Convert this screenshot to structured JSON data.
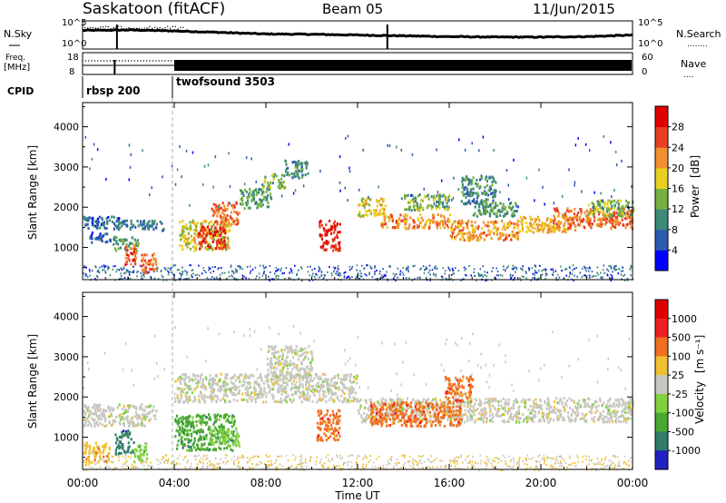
{
  "header": {
    "station": "Saskatoon (fitACF)",
    "beam": "Beam 05",
    "date": "11/Jun/2015"
  },
  "side_labels": {
    "nsky": "N.Sky",
    "nsearch": "N.Search",
    "freq": "Freq.",
    "freq_unit": "[MHz]",
    "nave": "Nave",
    "cpid": "CPID",
    "nsearch_dots": "........",
    "nave_dots": "...."
  },
  "chart_data": [
    {
      "type": "line",
      "name": "noise",
      "y_left_ticks": [
        "10^5",
        "10^0"
      ],
      "y_right_ticks": [
        "10^5",
        "10^0"
      ],
      "series": [
        {
          "name": "N.Sky",
          "x_hours": [
            0,
            2,
            4,
            6,
            8,
            10,
            12,
            14,
            16,
            18,
            20,
            22,
            24
          ],
          "level": [
            0.85,
            0.88,
            0.82,
            0.72,
            0.62,
            0.6,
            0.55,
            0.5,
            0.45,
            0.42,
            0.42,
            0.45,
            0.55
          ]
        },
        {
          "name": "N.Search",
          "x_hours": [
            0,
            1.3,
            2,
            4
          ],
          "level": [
            0.95,
            0.92,
            0.93,
            0.9
          ]
        }
      ]
    },
    {
      "type": "line",
      "name": "freq_nave",
      "y_left_ticks": [
        "18",
        "8"
      ],
      "y_right_ticks": [
        "60",
        "0"
      ],
      "nave_fraction_start": 0.4,
      "nave_fraction_main": 0.6
    },
    {
      "type": "table",
      "name": "cpid",
      "segments": [
        {
          "start_hour": 0,
          "label": "rbsp 200"
        },
        {
          "start_hour": 4,
          "label": "twofsound 3503"
        }
      ]
    },
    {
      "type": "heatmap",
      "name": "power",
      "parameter": "Power",
      "unit": "[dB]",
      "ylabel": "Slant Range [km]",
      "ylim": [
        200,
        4600
      ],
      "y_ticks": [
        1000,
        2000,
        3000,
        4000
      ],
      "xlim": [
        0,
        24
      ],
      "colorbar_range": [
        0,
        32
      ],
      "colorbar_ticks": [
        4,
        8,
        12,
        16,
        20,
        24,
        28
      ],
      "colors": [
        "#0000ff",
        "#2e5bb0",
        "#3c8a78",
        "#76b040",
        "#e8d020",
        "#f09030",
        "#e84020",
        "#e00000"
      ],
      "bands": [
        {
          "t": [
            0,
            1.6
          ],
          "r": [
            1480,
            1800
          ],
          "v": 6
        },
        {
          "t": [
            1.5,
            3.5
          ],
          "r": [
            1450,
            1700
          ],
          "v": 8
        },
        {
          "t": [
            0.3,
            1.2
          ],
          "r": [
            1150,
            1400
          ],
          "v": 6
        },
        {
          "t": [
            1.3,
            2.4
          ],
          "r": [
            950,
            1300
          ],
          "v": 12
        },
        {
          "t": [
            1.8,
            2.3
          ],
          "r": [
            600,
            1100
          ],
          "v": 26
        },
        {
          "t": [
            2.5,
            3.2
          ],
          "r": [
            400,
            900
          ],
          "v": 24
        },
        {
          "t": [
            4.2,
            6.4
          ],
          "r": [
            950,
            1700
          ],
          "v": 18
        },
        {
          "t": [
            5.0,
            6.2
          ],
          "r": [
            1000,
            1550
          ],
          "v": 28
        },
        {
          "t": [
            5.6,
            6.8
          ],
          "r": [
            1600,
            2150
          ],
          "v": 24
        },
        {
          "t": [
            6.8,
            8.2
          ],
          "r": [
            2000,
            2500
          ],
          "v": 12
        },
        {
          "t": [
            7.8,
            8.8
          ],
          "r": [
            2500,
            2850
          ],
          "v": 14
        },
        {
          "t": [
            8.8,
            9.8
          ],
          "r": [
            2750,
            3200
          ],
          "v": 10
        },
        {
          "t": [
            10.3,
            11.2
          ],
          "r": [
            950,
            1700
          ],
          "v": 28
        },
        {
          "t": [
            12.0,
            13.2
          ],
          "r": [
            1800,
            2250
          ],
          "v": 18
        },
        {
          "t": [
            13.0,
            16.0
          ],
          "r": [
            1500,
            1850
          ],
          "v": 22
        },
        {
          "t": [
            14.0,
            16.0
          ],
          "r": [
            1950,
            2350
          ],
          "v": 14
        },
        {
          "t": [
            16.0,
            19.0
          ],
          "r": [
            1200,
            1700
          ],
          "v": 22
        },
        {
          "t": [
            17.0,
            19.0
          ],
          "r": [
            1800,
            2150
          ],
          "v": 12
        },
        {
          "t": [
            19.0,
            21.5
          ],
          "r": [
            1400,
            1800
          ],
          "v": 20
        },
        {
          "t": [
            20.5,
            24.0
          ],
          "r": [
            1500,
            2000
          ],
          "v": 24
        },
        {
          "t": [
            22.0,
            24.0
          ],
          "r": [
            1800,
            2200
          ],
          "v": 14
        },
        {
          "t": [
            16.5,
            18.0
          ],
          "r": [
            2100,
            2800
          ],
          "v": 10
        }
      ]
    },
    {
      "type": "heatmap",
      "name": "velocity",
      "parameter": "Velocity",
      "unit": "[m s⁻¹]",
      "ylabel": "Slant Range [km]",
      "ylim": [
        200,
        4600
      ],
      "y_ticks": [
        1000,
        2000,
        3000,
        4000
      ],
      "xlim": [
        0,
        24
      ],
      "colorbar_ticks": [
        "1000",
        "500",
        "100",
        "25",
        "-25",
        "-100",
        "-500",
        "-1000"
      ],
      "colors": [
        "#2020c0",
        "#2f7c6a",
        "#48a830",
        "#80d040",
        "#c8c8c0",
        "#f0c030",
        "#f07020",
        "#f02020",
        "#e00000"
      ],
      "bands": [
        {
          "t": [
            0,
            3.2
          ],
          "r": [
            1300,
            1850
          ],
          "v": 4
        },
        {
          "t": [
            4.0,
            12.0
          ],
          "r": [
            1900,
            2600
          ],
          "v": 4
        },
        {
          "t": [
            8.0,
            10.0
          ],
          "r": [
            2500,
            3300
          ],
          "v": 4
        },
        {
          "t": [
            12.0,
            24.0
          ],
          "r": [
            1400,
            2000
          ],
          "v": 4
        },
        {
          "t": [
            1.4,
            2.2
          ],
          "r": [
            600,
            1200
          ],
          "v": 1
        },
        {
          "t": [
            2.2,
            2.8
          ],
          "r": [
            400,
            900
          ],
          "v": 3
        },
        {
          "t": [
            4.0,
            6.6
          ],
          "r": [
            700,
            1600
          ],
          "v": 2
        },
        {
          "t": [
            5.5,
            6.8
          ],
          "r": [
            800,
            1250
          ],
          "v": 3
        },
        {
          "t": [
            10.2,
            11.2
          ],
          "r": [
            950,
            1700
          ],
          "v": 6
        },
        {
          "t": [
            12.5,
            16.5
          ],
          "r": [
            1300,
            1900
          ],
          "v": 6
        },
        {
          "t": [
            15.8,
            17.0
          ],
          "r": [
            1900,
            2550
          ],
          "v": 6
        },
        {
          "t": [
            0,
            1.2
          ],
          "r": [
            400,
            900
          ],
          "v": 5
        }
      ]
    }
  ],
  "x_axis": {
    "ticks": [
      "00:00",
      "04:00",
      "08:00",
      "12:00",
      "16:00",
      "20:00",
      "00:00"
    ],
    "label": "Time UT"
  }
}
